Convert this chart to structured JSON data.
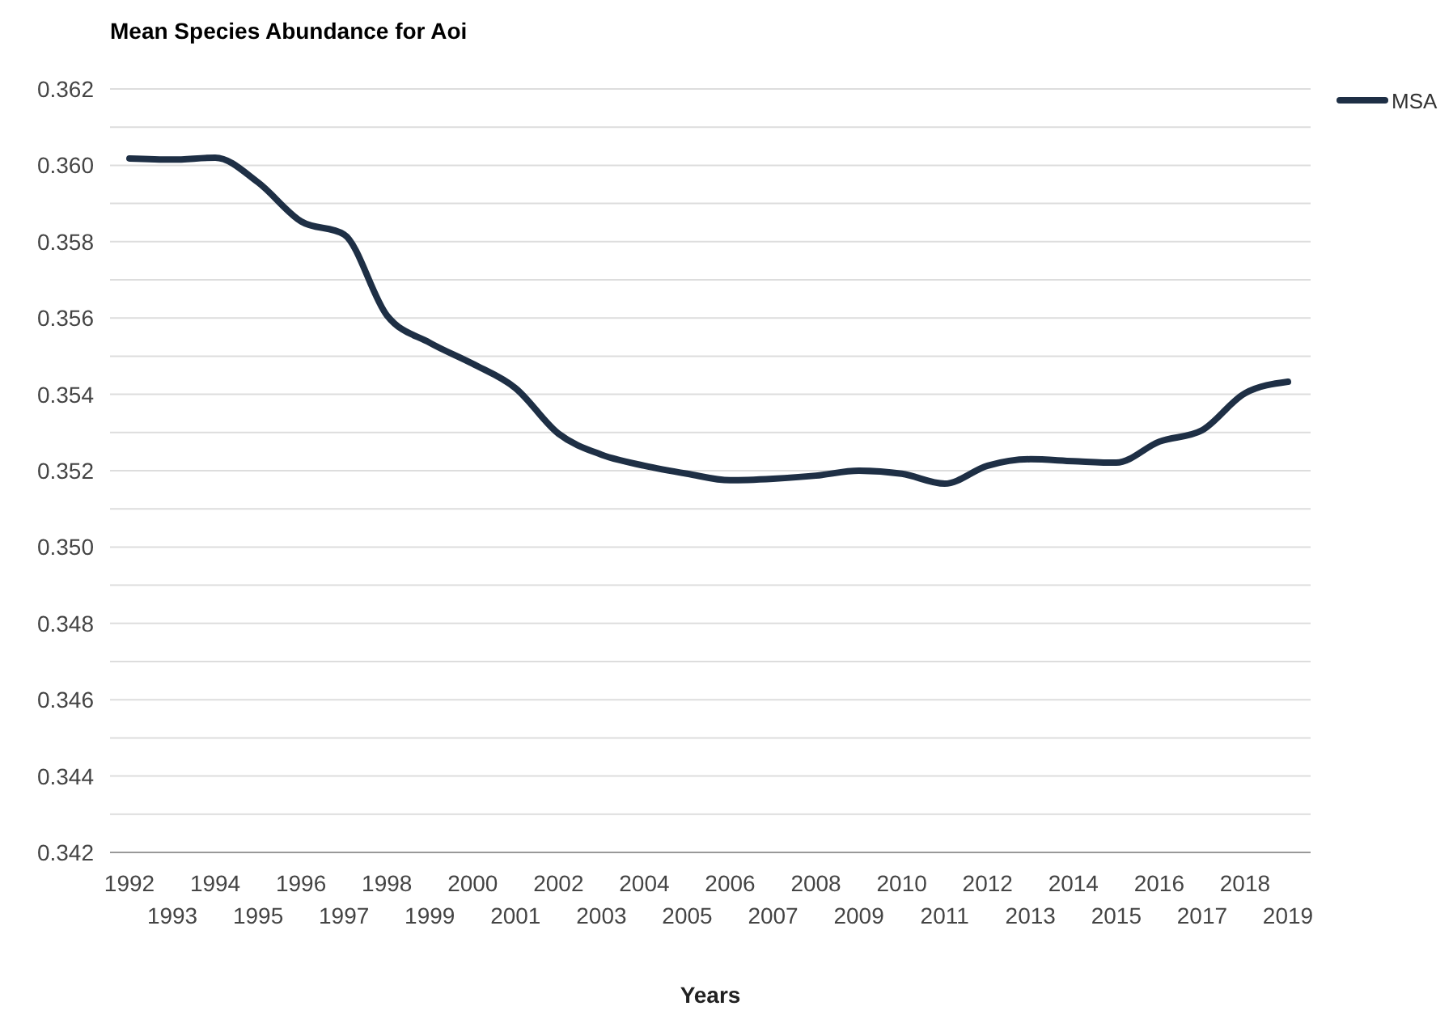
{
  "chart_data": {
    "type": "line",
    "title": "Mean Species Abundance for Aoi",
    "xlabel": "Years",
    "categories": [
      "1992",
      "1993",
      "1994",
      "1995",
      "1996",
      "1997",
      "1998",
      "1999",
      "2000",
      "2001",
      "2002",
      "2003",
      "2004",
      "2005",
      "2006",
      "2007",
      "2008",
      "2009",
      "2010",
      "2011",
      "2012",
      "2013",
      "2014",
      "2015",
      "2016",
      "2017",
      "2018",
      "2019"
    ],
    "series": [
      {
        "name": "MSA",
        "color": "#1e2f45",
        "values": [
          0.36018,
          0.36015,
          0.3602,
          0.35955,
          0.35853,
          0.35819,
          0.35607,
          0.35535,
          0.3548,
          0.35416,
          0.35297,
          0.35242,
          0.35213,
          0.35192,
          0.35175,
          0.35179,
          0.35187,
          0.352,
          0.35192,
          0.35166,
          0.35213,
          0.3523,
          0.35225,
          0.35221,
          0.35276,
          0.35306,
          0.35403,
          0.35433
        ]
      }
    ],
    "ylim": [
      0.342,
      0.362
    ],
    "yticks": [
      {
        "value": 0.342,
        "label": "0.342"
      },
      {
        "value": 0.343,
        "label": null
      },
      {
        "value": 0.344,
        "label": "0.344"
      },
      {
        "value": 0.345,
        "label": null
      },
      {
        "value": 0.346,
        "label": "0.346"
      },
      {
        "value": 0.347,
        "label": null
      },
      {
        "value": 0.348,
        "label": "0.348"
      },
      {
        "value": 0.349,
        "label": null
      },
      {
        "value": 0.35,
        "label": "0.350"
      },
      {
        "value": 0.351,
        "label": null
      },
      {
        "value": 0.352,
        "label": "0.352"
      },
      {
        "value": 0.353,
        "label": null
      },
      {
        "value": 0.354,
        "label": "0.354"
      },
      {
        "value": 0.355,
        "label": null
      },
      {
        "value": 0.356,
        "label": "0.356"
      },
      {
        "value": 0.357,
        "label": null
      },
      {
        "value": 0.358,
        "label": "0.358"
      },
      {
        "value": 0.359,
        "label": null
      },
      {
        "value": 0.36,
        "label": "0.360"
      },
      {
        "value": 0.361,
        "label": null
      },
      {
        "value": 0.362,
        "label": "0.362"
      }
    ],
    "grid": "y",
    "legend": "top right",
    "line_style": "solid",
    "marker": "none"
  }
}
